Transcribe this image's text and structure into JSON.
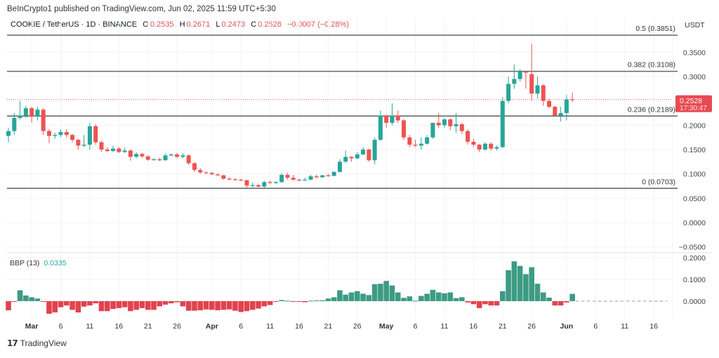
{
  "header": {
    "published": "BeInCrypto1 published on TradingView.com, Jun 02, 2025 11:59 UTC+5:30"
  },
  "legend": {
    "symbol": "COOKIE / TetherUS · 1D · BINANCE",
    "o_label": "O",
    "o": "0.2535",
    "h_label": "H",
    "h": "0.2671",
    "l_label": "L",
    "l": "0.2473",
    "c_label": "C",
    "c": "0.2528",
    "change": "−0.0007 (−0.28%)"
  },
  "price_axis": {
    "unit": "USDT",
    "ticks": [
      "0.3500",
      "0.3000",
      "0.2000",
      "0.1500",
      "0.1000",
      "0.0500",
      "0.0000",
      "−0.0500"
    ],
    "tick_values": [
      0.35,
      0.3,
      0.2,
      0.15,
      0.1,
      0.05,
      0.0,
      -0.05
    ],
    "current_price": "0.2528",
    "countdown": "17:30:47"
  },
  "fib_levels": [
    {
      "label": "0.5 (0.3851)",
      "value": 0.3851
    },
    {
      "label": "0.382 (0.3108)",
      "value": 0.3108
    },
    {
      "label": "0.236 (0.2189)",
      "value": 0.2189
    },
    {
      "label": "0 (0.0703)",
      "value": 0.0703
    }
  ],
  "indicator": {
    "name": "BBP (13)",
    "value": "0.0335",
    "ticks": [
      "0.2000",
      "0.1000",
      "0.0000"
    ],
    "tick_values": [
      0.2,
      0.1,
      0.0
    ]
  },
  "time_axis": {
    "labels": [
      "Mar",
      "6",
      "11",
      "16",
      "21",
      "26",
      "Apr",
      "6",
      "11",
      "16",
      "21",
      "26",
      "May",
      "6",
      "11",
      "16",
      "21",
      "26",
      "Jun",
      "6",
      "11",
      "16"
    ],
    "day_index": [
      4,
      9,
      14,
      19,
      24,
      29,
      35,
      40,
      45,
      50,
      55,
      60,
      65,
      70,
      75,
      80,
      85,
      90,
      96,
      101,
      106,
      111
    ],
    "bold": [
      true,
      false,
      false,
      false,
      false,
      false,
      true,
      false,
      false,
      false,
      false,
      false,
      true,
      false,
      false,
      false,
      false,
      false,
      true,
      false,
      false,
      false
    ]
  },
  "colors": {
    "up": "#26a69a",
    "down": "#ef5350",
    "up_bar": "#3d9b84",
    "down_bar": "#e0434f"
  },
  "footer": {
    "brand": "TradingView"
  },
  "chart_data": {
    "type": "candlestick",
    "first_date": "Feb 25",
    "last_date": "Jun 02",
    "ohlc": [
      [
        0.178,
        0.195,
        0.165,
        0.188
      ],
      [
        0.188,
        0.225,
        0.18,
        0.215
      ],
      [
        0.215,
        0.25,
        0.212,
        0.22
      ],
      [
        0.22,
        0.24,
        0.215,
        0.235
      ],
      [
        0.235,
        0.238,
        0.205,
        0.218
      ],
      [
        0.218,
        0.238,
        0.21,
        0.232
      ],
      [
        0.232,
        0.235,
        0.18,
        0.188
      ],
      [
        0.188,
        0.192,
        0.163,
        0.178
      ],
      [
        0.178,
        0.185,
        0.172,
        0.18
      ],
      [
        0.18,
        0.192,
        0.176,
        0.186
      ],
      [
        0.186,
        0.192,
        0.175,
        0.18
      ],
      [
        0.18,
        0.182,
        0.165,
        0.17
      ],
      [
        0.17,
        0.172,
        0.15,
        0.158
      ],
      [
        0.158,
        0.18,
        0.155,
        0.16
      ],
      [
        0.16,
        0.205,
        0.15,
        0.198
      ],
      [
        0.198,
        0.202,
        0.16,
        0.165
      ],
      [
        0.165,
        0.168,
        0.145,
        0.15
      ],
      [
        0.15,
        0.155,
        0.145,
        0.147
      ],
      [
        0.147,
        0.158,
        0.145,
        0.152
      ],
      [
        0.152,
        0.155,
        0.143,
        0.145
      ],
      [
        0.145,
        0.154,
        0.143,
        0.148
      ],
      [
        0.148,
        0.15,
        0.127,
        0.135
      ],
      [
        0.135,
        0.145,
        0.132,
        0.141
      ],
      [
        0.141,
        0.143,
        0.133,
        0.136
      ],
      [
        0.136,
        0.138,
        0.127,
        0.129
      ],
      [
        0.129,
        0.132,
        0.127,
        0.13
      ],
      [
        0.13,
        0.133,
        0.126,
        0.128
      ],
      [
        0.128,
        0.142,
        0.127,
        0.138
      ],
      [
        0.138,
        0.142,
        0.136,
        0.14
      ],
      [
        0.14,
        0.143,
        0.132,
        0.135
      ],
      [
        0.135,
        0.143,
        0.132,
        0.138
      ],
      [
        0.138,
        0.14,
        0.118,
        0.122
      ],
      [
        0.122,
        0.124,
        0.104,
        0.108
      ],
      [
        0.108,
        0.112,
        0.1,
        0.103
      ],
      [
        0.103,
        0.105,
        0.1,
        0.102
      ],
      [
        0.102,
        0.104,
        0.098,
        0.099
      ],
      [
        0.099,
        0.101,
        0.096,
        0.097
      ],
      [
        0.097,
        0.098,
        0.088,
        0.09
      ],
      [
        0.09,
        0.093,
        0.087,
        0.089
      ],
      [
        0.089,
        0.091,
        0.086,
        0.088
      ],
      [
        0.088,
        0.09,
        0.085,
        0.087
      ],
      [
        0.087,
        0.088,
        0.072,
        0.076
      ],
      [
        0.076,
        0.082,
        0.069,
        0.077
      ],
      [
        0.077,
        0.079,
        0.072,
        0.074
      ],
      [
        0.074,
        0.086,
        0.071,
        0.083
      ],
      [
        0.083,
        0.086,
        0.08,
        0.081
      ],
      [
        0.081,
        0.085,
        0.08,
        0.083
      ],
      [
        0.083,
        0.102,
        0.082,
        0.098
      ],
      [
        0.098,
        0.102,
        0.088,
        0.092
      ],
      [
        0.092,
        0.098,
        0.086,
        0.088
      ],
      [
        0.088,
        0.09,
        0.085,
        0.087
      ],
      [
        0.087,
        0.092,
        0.086,
        0.088
      ],
      [
        0.088,
        0.098,
        0.087,
        0.095
      ],
      [
        0.095,
        0.098,
        0.091,
        0.093
      ],
      [
        0.093,
        0.098,
        0.092,
        0.097
      ],
      [
        0.097,
        0.1,
        0.094,
        0.096
      ],
      [
        0.096,
        0.105,
        0.095,
        0.104
      ],
      [
        0.104,
        0.13,
        0.103,
        0.125
      ],
      [
        0.125,
        0.148,
        0.123,
        0.135
      ],
      [
        0.135,
        0.136,
        0.125,
        0.132
      ],
      [
        0.132,
        0.145,
        0.13,
        0.14
      ],
      [
        0.14,
        0.155,
        0.138,
        0.15
      ],
      [
        0.15,
        0.152,
        0.125,
        0.128
      ],
      [
        0.128,
        0.175,
        0.12,
        0.17
      ],
      [
        0.17,
        0.23,
        0.168,
        0.22
      ],
      [
        0.22,
        0.222,
        0.195,
        0.205
      ],
      [
        0.205,
        0.245,
        0.2,
        0.22
      ],
      [
        0.22,
        0.23,
        0.205,
        0.21
      ],
      [
        0.21,
        0.212,
        0.17,
        0.175
      ],
      [
        0.175,
        0.18,
        0.155,
        0.16
      ],
      [
        0.16,
        0.17,
        0.155,
        0.158
      ],
      [
        0.158,
        0.175,
        0.15,
        0.162
      ],
      [
        0.162,
        0.18,
        0.16,
        0.175
      ],
      [
        0.175,
        0.205,
        0.172,
        0.205
      ],
      [
        0.205,
        0.225,
        0.195,
        0.2
      ],
      [
        0.2,
        0.215,
        0.195,
        0.212
      ],
      [
        0.212,
        0.214,
        0.19,
        0.198
      ],
      [
        0.198,
        0.225,
        0.185,
        0.202
      ],
      [
        0.202,
        0.205,
        0.182,
        0.188
      ],
      [
        0.188,
        0.192,
        0.16,
        0.166
      ],
      [
        0.166,
        0.172,
        0.155,
        0.16
      ],
      [
        0.16,
        0.162,
        0.145,
        0.15
      ],
      [
        0.15,
        0.165,
        0.148,
        0.162
      ],
      [
        0.162,
        0.165,
        0.148,
        0.152
      ],
      [
        0.152,
        0.158,
        0.148,
        0.155
      ],
      [
        0.155,
        0.258,
        0.153,
        0.25
      ],
      [
        0.25,
        0.3,
        0.245,
        0.285
      ],
      [
        0.285,
        0.325,
        0.275,
        0.295
      ],
      [
        0.295,
        0.315,
        0.29,
        0.31
      ],
      [
        0.31,
        0.312,
        0.275,
        0.308
      ],
      [
        0.305,
        0.367,
        0.25,
        0.265
      ],
      [
        0.265,
        0.3,
        0.255,
        0.282
      ],
      [
        0.282,
        0.284,
        0.24,
        0.25
      ],
      [
        0.25,
        0.255,
        0.235,
        0.238
      ],
      [
        0.238,
        0.24,
        0.218,
        0.22
      ],
      [
        0.22,
        0.238,
        0.208,
        0.225
      ],
      [
        0.225,
        0.262,
        0.21,
        0.253
      ],
      [
        0.2535,
        0.2671,
        0.2473,
        0.2528
      ]
    ],
    "bbp": [
      -0.042,
      -0.003,
      0.05,
      0.026,
      0.018,
      0.012,
      -0.002,
      -0.058,
      -0.052,
      -0.028,
      -0.02,
      -0.04,
      -0.052,
      -0.025,
      -0.02,
      -0.01,
      -0.046,
      -0.046,
      -0.036,
      -0.032,
      -0.028,
      -0.046,
      -0.04,
      -0.032,
      -0.04,
      -0.04,
      -0.024,
      -0.016,
      -0.01,
      -0.005,
      -0.024,
      -0.044,
      -0.044,
      -0.042,
      -0.038,
      -0.04,
      -0.042,
      -0.04,
      -0.038,
      -0.044,
      -0.05,
      -0.046,
      -0.04,
      -0.034,
      -0.024,
      -0.018,
      -0.001,
      0.005,
      0.002,
      -0.003,
      -0.003,
      -0.005,
      0.002,
      0.003,
      0.004,
      0.012,
      0.018,
      0.05,
      0.03,
      0.04,
      0.046,
      0.034,
      0.028,
      0.078,
      0.08,
      0.093,
      0.072,
      0.04,
      0.015,
      0.022,
      0.002,
      0.024,
      0.034,
      0.052,
      0.04,
      0.036,
      0.04,
      0.014,
      0.018,
      -0.006,
      -0.014,
      -0.032,
      -0.014,
      -0.02,
      -0.02,
      0.046,
      0.142,
      0.183,
      0.162,
      0.124,
      0.156,
      0.08,
      0.04,
      0.016,
      -0.02,
      -0.02,
      -0.006,
      0.0335
    ],
    "ylim": [
      -0.06,
      0.4
    ],
    "bbp_ylim": [
      -0.06,
      0.21
    ]
  }
}
